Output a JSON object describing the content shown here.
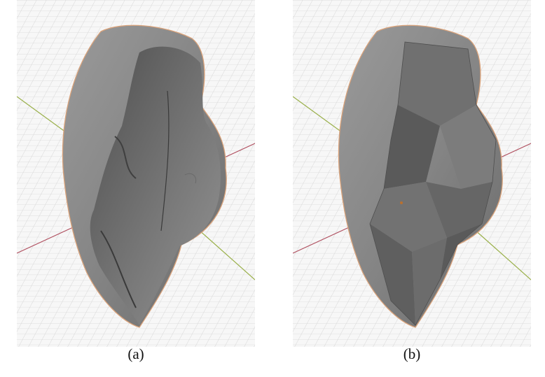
{
  "figure": {
    "panels": [
      {
        "id": "a",
        "caption": "(a)",
        "render_style": "rough-cut-surface"
      },
      {
        "id": "b",
        "caption": "(b)",
        "render_style": "flat-faceted-cut-surface"
      }
    ],
    "colors": {
      "background": "#f7f7f7",
      "grid_line": "#d4d4d4",
      "axis_x": "#b05060",
      "axis_y": "#9ab04a",
      "mesh_fill": "#8c8c8c",
      "mesh_dark": "#5a5a5a",
      "outline": "#d9a27a"
    }
  }
}
